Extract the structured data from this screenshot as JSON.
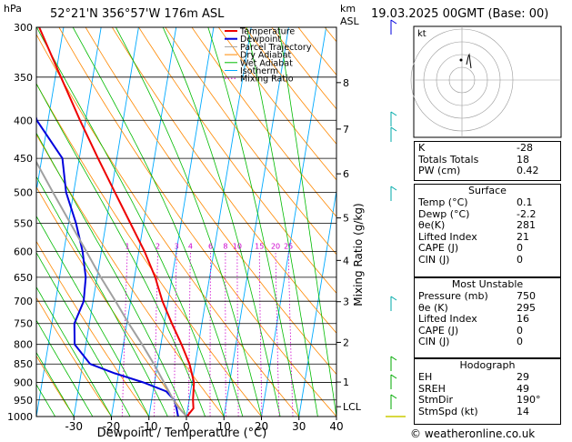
{
  "header": {
    "pressure_unit": "hPa",
    "location": "52°21'N  356°57'W  176m  ASL",
    "km_label": "km",
    "asl_label": "ASL",
    "datetime": "19.03.2025  00GMT  (Base: 00)"
  },
  "hodograph": {
    "label": "kt"
  },
  "indices": {
    "rows": [
      {
        "label": "K",
        "value": "-28"
      },
      {
        "label": "Totals Totals",
        "value": "18"
      },
      {
        "label": "PW (cm)",
        "value": "0.42"
      }
    ]
  },
  "surface": {
    "title": "Surface",
    "rows": [
      {
        "label": "Temp (°C)",
        "value": "0.1"
      },
      {
        "label": "Dewp (°C)",
        "value": "-2.2"
      },
      {
        "label": "θe(K)",
        "value": "281"
      },
      {
        "label": "Lifted Index",
        "value": "21"
      },
      {
        "label": "CAPE (J)",
        "value": "0"
      },
      {
        "label": "CIN (J)",
        "value": "0"
      }
    ]
  },
  "most_unstable": {
    "title": "Most Unstable",
    "rows": [
      {
        "label": "Pressure (mb)",
        "value": "750"
      },
      {
        "label": "θe (K)",
        "value": "295"
      },
      {
        "label": "Lifted Index",
        "value": "16"
      },
      {
        "label": "CAPE (J)",
        "value": "0"
      },
      {
        "label": "CIN (J)",
        "value": "0"
      }
    ]
  },
  "hodograph_table": {
    "title": "Hodograph",
    "rows": [
      {
        "label": "EH",
        "value": "29"
      },
      {
        "label": "SREH",
        "value": "49"
      },
      {
        "label": "StmDir",
        "value": "190°"
      },
      {
        "label": "StmSpd (kt)",
        "value": "14"
      }
    ]
  },
  "footer": {
    "copyright": "© weatheronline.co.uk"
  },
  "chart_data": {
    "type": "line",
    "xlabel": "Dewpoint / Temperature (°C)",
    "ylabel_right": "Mixing Ratio (g/kg)",
    "x_ticks": [
      -30,
      -20,
      -10,
      0,
      10,
      20,
      30,
      40
    ],
    "pressure_levels": [
      300,
      350,
      400,
      450,
      500,
      550,
      600,
      650,
      700,
      750,
      800,
      850,
      900,
      950,
      1000
    ],
    "xlim": [
      -40,
      40
    ],
    "ylim": [
      1000,
      300
    ],
    "skew_per_decade": 33,
    "legend": [
      "Temperature",
      "Dewpoint",
      "Parcel Trajectory",
      "Dry Adiabat",
      "Wet Adiabat",
      "Isotherm",
      "Mixing Ratio"
    ],
    "legend_colors": [
      "#ee0000",
      "#0000dd",
      "#a0a0a0",
      "#ff8800",
      "#00bb00",
      "#00aaff",
      "#cc00cc"
    ],
    "mixing_ratio_labels": [
      "1",
      "2",
      "3",
      "4",
      "6",
      "8",
      "10",
      "15",
      "20",
      "25"
    ],
    "height_km": [
      {
        "km": "8",
        "p": 356
      },
      {
        "km": "7",
        "p": 411
      },
      {
        "km": "6",
        "p": 472
      },
      {
        "km": "5",
        "p": 541
      },
      {
        "km": "4",
        "p": 617
      },
      {
        "km": "3",
        "p": 701
      },
      {
        "km": "2",
        "p": 795
      },
      {
        "km": "1",
        "p": 899
      },
      {
        "km": "LCL",
        "p": 970
      }
    ],
    "series": [
      {
        "name": "Temperature",
        "p": [
          1000,
          975,
          950,
          900,
          850,
          800,
          750,
          700,
          650,
          600,
          550,
          500,
          450,
          400,
          350,
          300
        ],
        "t": [
          0.1,
          1.5,
          1.0,
          0.5,
          -1.5,
          -4.5,
          -8.0,
          -11.5,
          -14.5,
          -18.5,
          -23.5,
          -29.0,
          -35.0,
          -41.5,
          -48.5,
          -56.5
        ]
      },
      {
        "name": "Dewpoint",
        "p": [
          1000,
          975,
          950,
          925,
          900,
          875,
          850,
          800,
          750,
          700,
          650,
          600,
          550,
          500,
          450,
          400,
          350,
          300
        ],
        "t": [
          -2.2,
          -3.0,
          -4.0,
          -6.5,
          -13.0,
          -21.0,
          -28.0,
          -33.0,
          -34.0,
          -32.5,
          -33.0,
          -35.0,
          -38.0,
          -42.0,
          -44.5,
          -53.0,
          -58.0,
          -64.0
        ]
      },
      {
        "name": "Parcel Trajectory",
        "p": [
          1000,
          970,
          950,
          900,
          850,
          800,
          750,
          700,
          650,
          600,
          550,
          500,
          450,
          400,
          350,
          300
        ],
        "t": [
          0.1,
          -2.8,
          -4.2,
          -7.5,
          -11.0,
          -15.0,
          -19.5,
          -24.0,
          -29.0,
          -34.0,
          -39.5,
          -45.5,
          -52.0,
          -59.0,
          -66.0,
          -74.0
        ]
      }
    ]
  }
}
